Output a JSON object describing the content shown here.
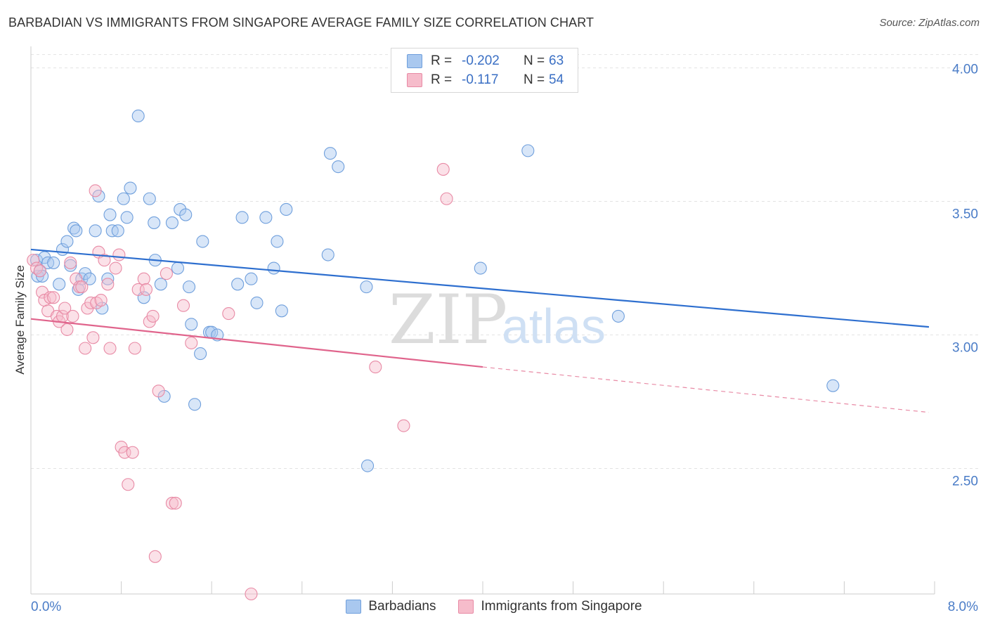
{
  "header": {
    "title": "BARBADIAN VS IMMIGRANTS FROM SINGAPORE AVERAGE FAMILY SIZE CORRELATION CHART",
    "source": "Source: ZipAtlas.com"
  },
  "watermark": {
    "zip": "ZIP",
    "atlas": "atlas"
  },
  "legend": {
    "rows": [
      {
        "r_label": "R =",
        "r_value": "-0.202",
        "n_label": "N =",
        "n_value": "63",
        "color": "#a9c8ef",
        "stroke": "#6f9fdc"
      },
      {
        "r_label": "R =",
        "r_value": "-0.117",
        "n_label": "N =",
        "n_value": "54",
        "color": "#f6bccb",
        "stroke": "#e88aa5"
      }
    ]
  },
  "chart_data": {
    "type": "scatter",
    "title": "BARBADIAN VS IMMIGRANTS FROM SINGAPORE AVERAGE FAMILY SIZE CORRELATION CHART",
    "ylabel": "Average Family Size",
    "xlabel": "",
    "x_tick_labels": [
      "0.0%",
      "8.0%"
    ],
    "y_tick_labels": [
      "4.00",
      "3.50",
      "3.00",
      "2.50"
    ],
    "xlim": [
      0.0,
      8.0
    ],
    "ylim": [
      2.03,
      4.07
    ],
    "y_ticks": [
      4.0,
      3.5,
      3.0,
      2.5
    ],
    "grid": "horizontal dashed",
    "legend_placement": "top-center",
    "series": [
      {
        "name": "Barbadians",
        "color": "#6f9fdc",
        "fill": "#a9c8ef",
        "trend": {
          "x0": 0.0,
          "y0": 3.32,
          "x1": 7.95,
          "y1": 3.03
        },
        "points": [
          [
            0.05,
            3.28
          ],
          [
            0.06,
            3.22
          ],
          [
            0.08,
            3.24
          ],
          [
            0.1,
            3.22
          ],
          [
            0.12,
            3.29
          ],
          [
            0.15,
            3.27
          ],
          [
            0.2,
            3.27
          ],
          [
            0.25,
            3.19
          ],
          [
            0.28,
            3.32
          ],
          [
            0.32,
            3.35
          ],
          [
            0.35,
            3.26
          ],
          [
            0.38,
            3.4
          ],
          [
            0.4,
            3.39
          ],
          [
            0.42,
            3.17
          ],
          [
            0.45,
            3.21
          ],
          [
            0.48,
            3.23
          ],
          [
            0.52,
            3.21
          ],
          [
            0.57,
            3.39
          ],
          [
            0.6,
            3.52
          ],
          [
            0.63,
            3.1
          ],
          [
            0.68,
            3.21
          ],
          [
            0.7,
            3.45
          ],
          [
            0.72,
            3.39
          ],
          [
            0.77,
            3.39
          ],
          [
            0.82,
            3.51
          ],
          [
            0.85,
            3.44
          ],
          [
            0.88,
            3.55
          ],
          [
            0.95,
            3.82
          ],
          [
            1.0,
            3.14
          ],
          [
            1.05,
            3.51
          ],
          [
            1.09,
            3.42
          ],
          [
            1.1,
            3.28
          ],
          [
            1.15,
            3.19
          ],
          [
            1.18,
            2.77
          ],
          [
            1.25,
            3.42
          ],
          [
            1.3,
            3.25
          ],
          [
            1.32,
            3.47
          ],
          [
            1.37,
            3.45
          ],
          [
            1.4,
            3.18
          ],
          [
            1.42,
            3.04
          ],
          [
            1.45,
            2.74
          ],
          [
            1.5,
            2.93
          ],
          [
            1.52,
            3.35
          ],
          [
            1.58,
            3.01
          ],
          [
            1.6,
            3.01
          ],
          [
            1.65,
            3.0
          ],
          [
            1.83,
            3.19
          ],
          [
            1.87,
            3.44
          ],
          [
            1.95,
            3.21
          ],
          [
            2.0,
            3.12
          ],
          [
            2.08,
            3.44
          ],
          [
            2.15,
            3.25
          ],
          [
            2.18,
            3.35
          ],
          [
            2.22,
            3.09
          ],
          [
            2.26,
            3.47
          ],
          [
            2.63,
            3.3
          ],
          [
            2.65,
            3.68
          ],
          [
            2.72,
            3.63
          ],
          [
            2.97,
            3.18
          ],
          [
            2.98,
            2.51
          ],
          [
            3.98,
            3.25
          ],
          [
            4.4,
            3.69
          ],
          [
            5.2,
            3.07
          ],
          [
            7.1,
            2.81
          ]
        ]
      },
      {
        "name": "Immigrants from Singapore",
        "color": "#e88aa5",
        "fill": "#f6bccb",
        "trend": {
          "x0": 0.0,
          "y0": 3.06,
          "x1": 4.0,
          "y1": 2.88
        },
        "trend_dashed": {
          "x0": 4.0,
          "y0": 2.88,
          "x1": 7.95,
          "y1": 2.71
        },
        "points": [
          [
            0.02,
            3.28
          ],
          [
            0.05,
            3.25
          ],
          [
            0.08,
            3.24
          ],
          [
            0.1,
            3.16
          ],
          [
            0.12,
            3.13
          ],
          [
            0.15,
            3.09
          ],
          [
            0.17,
            3.14
          ],
          [
            0.2,
            3.14
          ],
          [
            0.23,
            3.07
          ],
          [
            0.25,
            3.05
          ],
          [
            0.28,
            3.07
          ],
          [
            0.3,
            3.1
          ],
          [
            0.32,
            3.02
          ],
          [
            0.35,
            3.27
          ],
          [
            0.37,
            3.07
          ],
          [
            0.4,
            3.21
          ],
          [
            0.43,
            3.18
          ],
          [
            0.45,
            3.18
          ],
          [
            0.48,
            2.95
          ],
          [
            0.5,
            3.1
          ],
          [
            0.53,
            3.12
          ],
          [
            0.55,
            2.99
          ],
          [
            0.57,
            3.54
          ],
          [
            0.58,
            3.12
          ],
          [
            0.6,
            3.31
          ],
          [
            0.62,
            3.13
          ],
          [
            0.65,
            3.28
          ],
          [
            0.68,
            3.19
          ],
          [
            0.7,
            2.95
          ],
          [
            0.75,
            3.25
          ],
          [
            0.78,
            3.3
          ],
          [
            0.8,
            2.58
          ],
          [
            0.83,
            2.56
          ],
          [
            0.86,
            2.44
          ],
          [
            0.9,
            2.56
          ],
          [
            0.92,
            2.95
          ],
          [
            0.95,
            3.17
          ],
          [
            1.0,
            3.21
          ],
          [
            1.02,
            3.17
          ],
          [
            1.05,
            3.05
          ],
          [
            1.08,
            3.07
          ],
          [
            1.1,
            2.17
          ],
          [
            1.13,
            2.79
          ],
          [
            1.2,
            3.23
          ],
          [
            1.25,
            2.37
          ],
          [
            1.28,
            2.37
          ],
          [
            1.35,
            3.11
          ],
          [
            1.42,
            2.97
          ],
          [
            1.75,
            3.08
          ],
          [
            1.95,
            2.03
          ],
          [
            3.05,
            2.88
          ],
          [
            3.3,
            2.66
          ],
          [
            3.65,
            3.62
          ],
          [
            3.68,
            3.51
          ]
        ]
      }
    ]
  }
}
